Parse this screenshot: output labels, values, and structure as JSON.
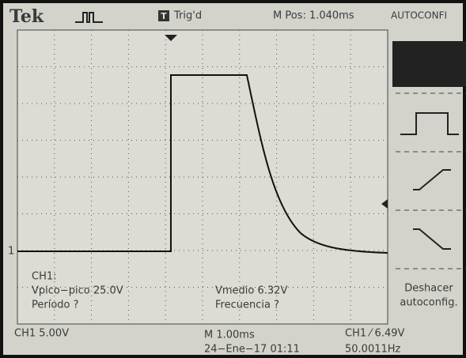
{
  "header": {
    "brand": "Tek",
    "trigger_icon": "T",
    "trigger_status": "Trig'd",
    "m_pos": "M Pos: 1.040ms",
    "menu_title": "AUTOCONFI"
  },
  "measurements": {
    "channel": "CH1:",
    "vpp": "Vpico−pico 25.0V",
    "period": "Período ?",
    "vmedio": "Vmedio 6.32V",
    "frequency": "Frecuencia ?"
  },
  "menu": {
    "undo_line1": "Deshacer",
    "undo_line2": "autoconfig."
  },
  "footer": {
    "ch_scale": "CH1  5.00V",
    "timebase": "M 1.00ms",
    "trigger_info": "CH1 ⁄ 6.49V",
    "date": "24−Ene−17 01:11",
    "frequency": "50.0011Hz"
  }
}
